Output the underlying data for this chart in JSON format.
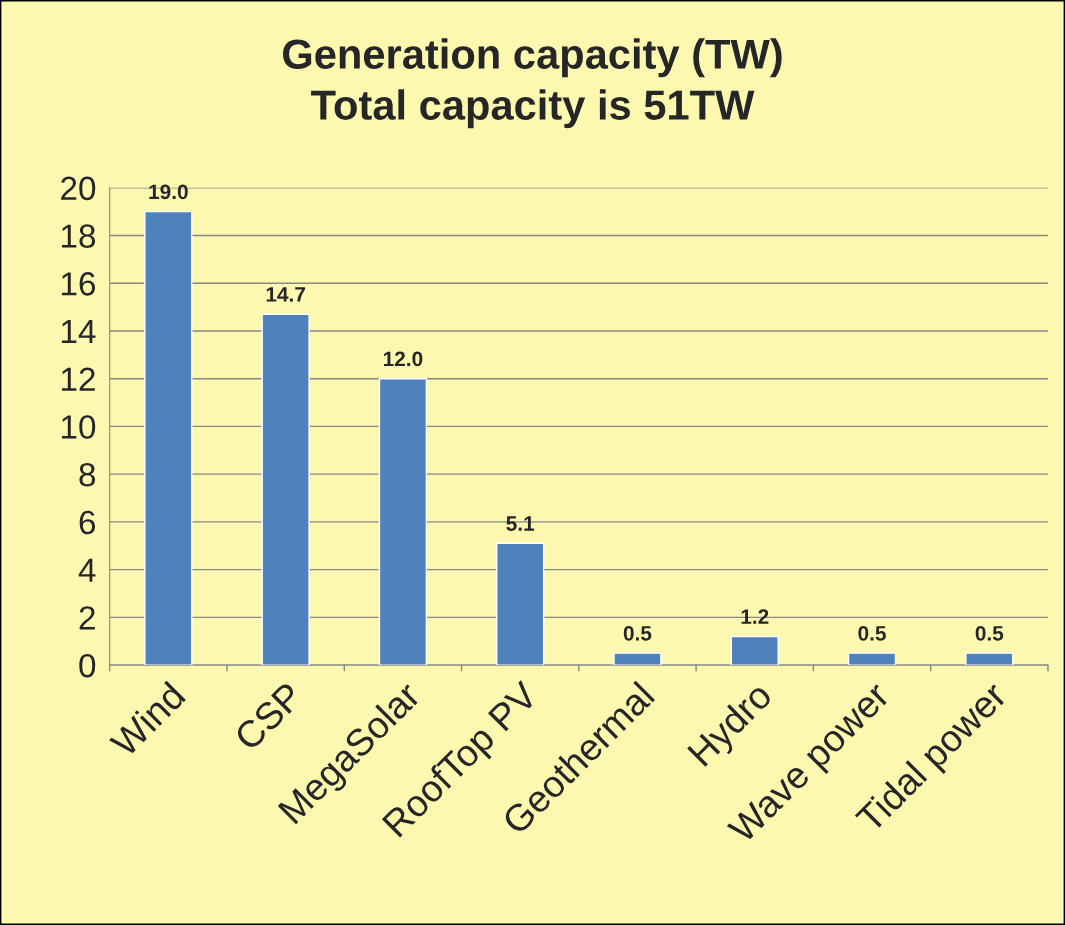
{
  "chart_data": {
    "type": "bar",
    "title": "Generation capacity (TW)\nTotal capacity is 51TW",
    "categories": [
      "Wind",
      "CSP",
      "MegaSolar",
      "RoofTop PV",
      "Geothermal",
      "Hydro",
      "Wave power",
      "Tidal power"
    ],
    "values": [
      19.0,
      14.7,
      12.0,
      5.1,
      0.5,
      1.2,
      0.5,
      0.5
    ],
    "value_labels": [
      "19.0",
      "14.7",
      "12.0",
      "5.1",
      "0.5",
      "1.2",
      "0.5",
      "0.5"
    ],
    "color": "#4f81bd",
    "ylim": [
      0,
      20
    ],
    "yticks": [
      0,
      2,
      4,
      6,
      8,
      10,
      12,
      14,
      16,
      18,
      20
    ],
    "grid": "y",
    "legend": false
  }
}
